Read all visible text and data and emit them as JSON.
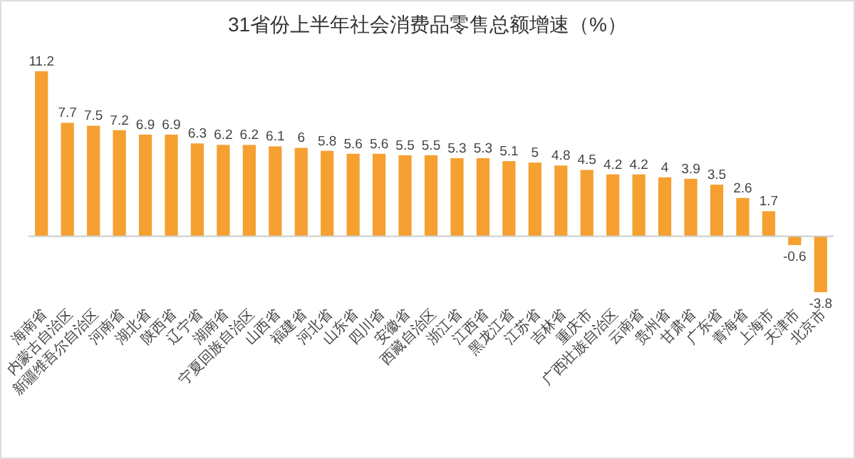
{
  "chart_data": {
    "type": "bar",
    "title": "31省份上半年社会消费品零售总额增速（%）",
    "categories": [
      "海南省",
      "内蒙古自治区",
      "新疆维吾尔自治区",
      "河南省",
      "湖北省",
      "陕西省",
      "辽宁省",
      "湖南省",
      "宁夏回族自治区",
      "山西省",
      "福建省",
      "河北省",
      "山东省",
      "四川省",
      "安徽省",
      "西藏自治区",
      "浙江省",
      "江西省",
      "黑龙江省",
      "江苏省",
      "吉林省",
      "重庆市",
      "广西壮族自治区",
      "云南省",
      "贵州省",
      "甘肃省",
      "广东省",
      "青海省",
      "上海市",
      "天津市",
      "北京市"
    ],
    "values": [
      11.2,
      7.7,
      7.5,
      7.2,
      6.9,
      6.9,
      6.3,
      6.2,
      6.2,
      6.1,
      6,
      5.8,
      5.6,
      5.6,
      5.5,
      5.5,
      5.3,
      5.3,
      5.1,
      5,
      4.8,
      4.5,
      4.2,
      4.2,
      4,
      3.9,
      3.5,
      2.6,
      1.7,
      -0.6,
      -3.8
    ],
    "color": "#f5a030",
    "data_labels": true
  }
}
